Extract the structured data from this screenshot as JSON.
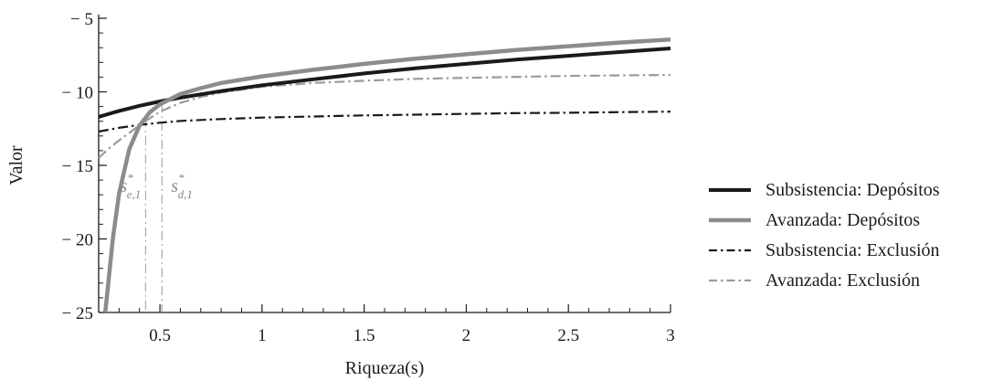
{
  "chart_data": {
    "type": "line",
    "xlabel": "Riqueza(s)",
    "ylabel": "Valor",
    "xlim": [
      0.2,
      3
    ],
    "ylim": [
      -25,
      -5
    ],
    "xticks": [
      {
        "value": 0.5,
        "label": "0.5"
      },
      {
        "value": 1,
        "label": "1"
      },
      {
        "value": 1.5,
        "label": "1.5"
      },
      {
        "value": 2,
        "label": "2"
      },
      {
        "value": 2.5,
        "label": "2.5"
      },
      {
        "value": 3,
        "label": "3"
      }
    ],
    "yticks": [
      {
        "value": -5,
        "label": "− 5"
      },
      {
        "value": -10,
        "label": "− 10"
      },
      {
        "value": -15,
        "label": "− 15"
      },
      {
        "value": -20,
        "label": "− 20"
      },
      {
        "value": -25,
        "label": "− 25"
      }
    ],
    "grid": false,
    "legend_position": "right",
    "series": [
      {
        "name": "Subsistencia: Depósitos",
        "color": "#1a1a1a",
        "style": "solid",
        "x": [
          0.2,
          0.3,
          0.4,
          0.5,
          0.6,
          0.8,
          1.0,
          1.25,
          1.5,
          1.75,
          2.0,
          2.25,
          2.5,
          2.75,
          3.0
        ],
        "y": [
          -11.7,
          -11.3,
          -10.95,
          -10.65,
          -10.4,
          -9.95,
          -9.55,
          -9.15,
          -8.75,
          -8.4,
          -8.1,
          -7.8,
          -7.55,
          -7.3,
          -7.05
        ]
      },
      {
        "name": "Avanzada: Depósitos",
        "color": "#8c8c8c",
        "style": "solid",
        "x": [
          0.232,
          0.24,
          0.25,
          0.27,
          0.3,
          0.35,
          0.4,
          0.45,
          0.5,
          0.6,
          0.7,
          0.8,
          1.0,
          1.25,
          1.5,
          1.75,
          2.0,
          2.25,
          2.5,
          2.75,
          3.0
        ],
        "y": [
          -25,
          -24.0,
          -22.6,
          -19.9,
          -16.9,
          -13.9,
          -12.3,
          -11.4,
          -10.85,
          -10.15,
          -9.75,
          -9.4,
          -8.95,
          -8.5,
          -8.1,
          -7.75,
          -7.45,
          -7.15,
          -6.9,
          -6.65,
          -6.45
        ]
      },
      {
        "name": "Subsistencia: Exclusión",
        "color": "#1a1a1a",
        "style": "dashdot",
        "x": [
          0.2,
          0.3,
          0.4,
          0.5,
          0.6,
          0.8,
          1.0,
          1.25,
          1.5,
          1.75,
          2.0,
          2.25,
          2.5,
          2.75,
          3.0
        ],
        "y": [
          -12.7,
          -12.45,
          -12.25,
          -12.1,
          -11.98,
          -11.85,
          -11.75,
          -11.68,
          -11.6,
          -11.55,
          -11.5,
          -11.45,
          -11.42,
          -11.38,
          -11.35
        ]
      },
      {
        "name": "Avanzada: Exclusión",
        "color": "#9a9a9a",
        "style": "dashdot",
        "x": [
          0.2,
          0.25,
          0.3,
          0.35,
          0.4,
          0.45,
          0.5,
          0.6,
          0.7,
          0.8,
          1.0,
          1.25,
          1.5,
          1.75,
          2.0,
          2.25,
          2.5,
          2.75,
          3.0
        ],
        "y": [
          -14.5,
          -13.85,
          -13.3,
          -12.8,
          -12.25,
          -11.8,
          -11.35,
          -10.75,
          -10.35,
          -10.05,
          -9.65,
          -9.4,
          -9.25,
          -9.12,
          -9.05,
          -8.98,
          -8.92,
          -8.88,
          -8.85
        ]
      }
    ],
    "annotations": [
      {
        "base": "s",
        "sup": "*",
        "sub": "e,1",
        "x": 0.43
      },
      {
        "base": "s",
        "sup": "*",
        "sub": "d,1",
        "x": 0.51
      }
    ]
  }
}
